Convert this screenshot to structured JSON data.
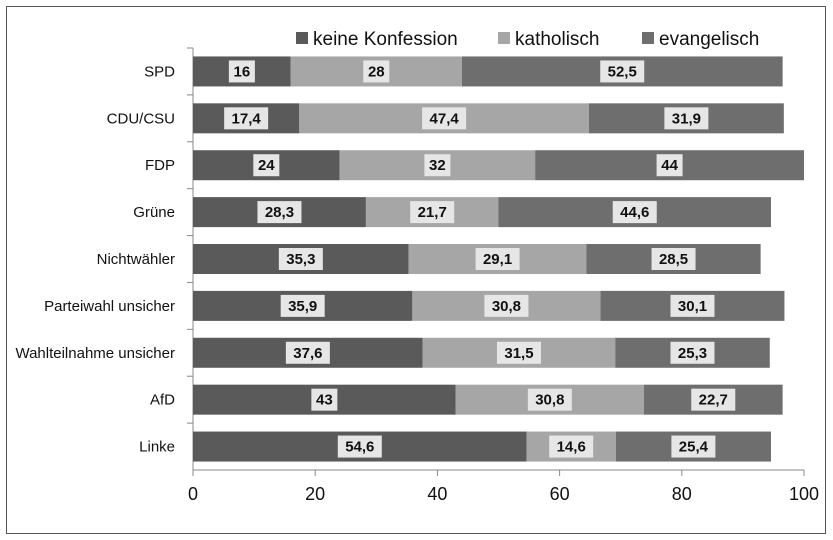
{
  "chart_data": {
    "type": "bar",
    "orientation": "horizontal",
    "stacked": true,
    "categories": [
      "SPD",
      "CDU/CSU",
      "FDP",
      "Grüne",
      "Nichtwähler",
      "Parteiwahl unsicher",
      "Wahlteilnahme unsicher",
      "AfD",
      "Linke"
    ],
    "series": [
      {
        "name": "keine Konfession",
        "color": "#5a5a5a",
        "values": [
          16,
          17.4,
          24,
          28.3,
          35.3,
          35.9,
          37.6,
          43,
          54.6
        ]
      },
      {
        "name": "katholisch",
        "color": "#a6a6a6",
        "values": [
          28,
          47.4,
          32,
          21.7,
          29.1,
          30.8,
          31.5,
          30.8,
          14.6
        ]
      },
      {
        "name": "evangelisch",
        "color": "#6e6e6e",
        "values": [
          52.5,
          31.9,
          44,
          44.6,
          28.5,
          30.1,
          25.3,
          22.7,
          25.4
        ]
      }
    ],
    "value_labels": [
      [
        "16",
        "17,4",
        "24",
        "28,3",
        "35,3",
        "35,9",
        "37,6",
        "43",
        "54,6"
      ],
      [
        "28",
        "47,4",
        "32",
        "21,7",
        "29,1",
        "30,8",
        "31,5",
        "30,8",
        "14,6"
      ],
      [
        "52,5",
        "31,9",
        "44",
        "44,6",
        "28,5",
        "30,1",
        "25,3",
        "22,7",
        "25,4"
      ]
    ],
    "x_ticks": [
      "0",
      "20",
      "40",
      "60",
      "80",
      "100"
    ],
    "xlim": [
      0,
      100
    ],
    "legend_position": "top",
    "grid": false
  }
}
